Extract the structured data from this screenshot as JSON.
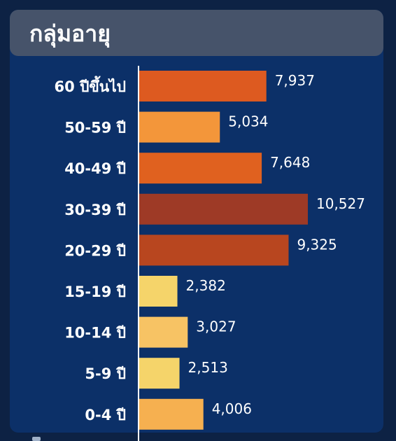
{
  "header": {
    "title": "กลุ่มอายุ"
  },
  "chart_data": {
    "type": "bar",
    "orientation": "horizontal",
    "title": "กลุ่มอายุ",
    "categories": [
      "60 ปีขึ้นไป",
      "50-59 ปี",
      "40-49 ปี",
      "30-39 ปี",
      "20-29 ปี",
      "15-19 ปี",
      "10-14 ปี",
      "5-9 ปี",
      "0-4 ปี"
    ],
    "values": [
      7937,
      5034,
      7648,
      10527,
      9325,
      2382,
      3027,
      2513,
      4006
    ],
    "value_labels": [
      "7,937",
      "5,034",
      "7,648",
      "10,527",
      "9,325",
      "2,382",
      "3,027",
      "2,513",
      "4,006"
    ],
    "colors": [
      "#dd5a20",
      "#f3963a",
      "#e0611f",
      "#9e3a26",
      "#b8461f",
      "#f5d46a",
      "#f7c364",
      "#f5d46a",
      "#f6b050"
    ],
    "xlim": [
      0,
      12000
    ],
    "grid": false,
    "legend": "none"
  }
}
